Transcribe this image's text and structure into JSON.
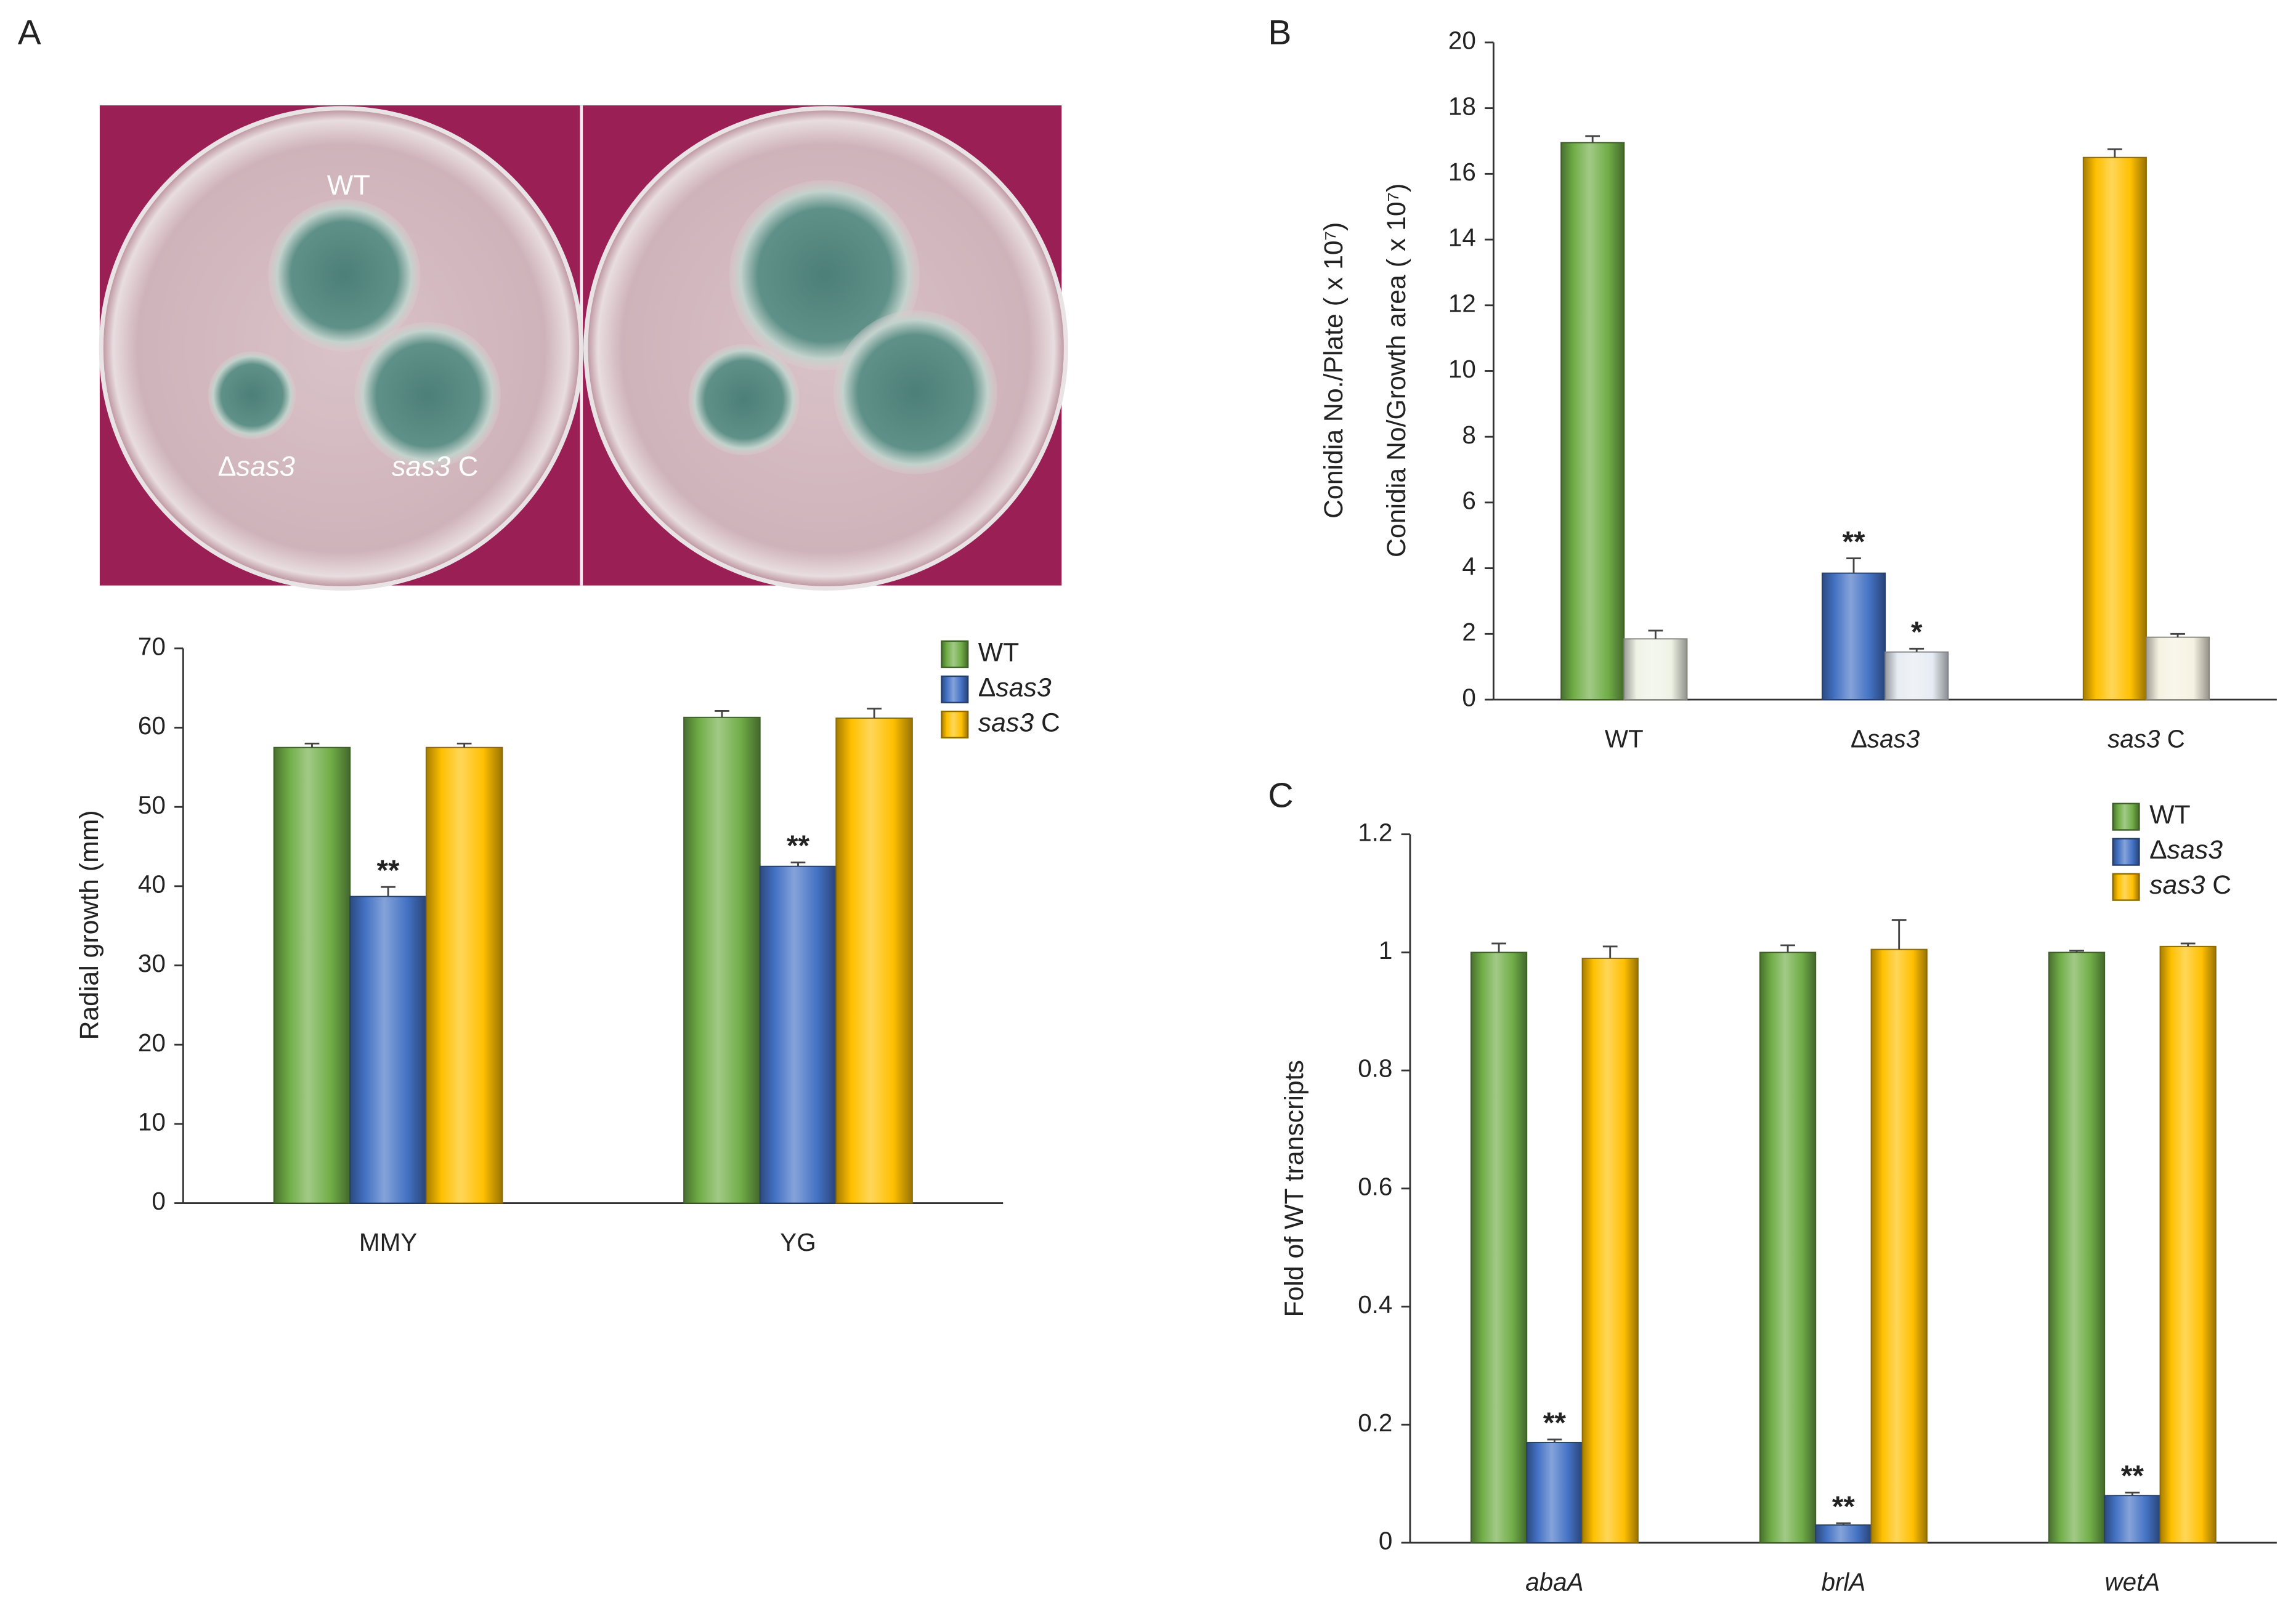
{
  "panels": [
    "A",
    "B",
    "C"
  ],
  "photo_labels": [
    "WT",
    "Δsas3",
    "sas3 C"
  ],
  "chart_data": [
    {
      "type": "bar",
      "y_label": "Radial growth (mm)",
      "categories": [
        "MMY",
        "YG"
      ],
      "series": [
        {
          "name": "WT",
          "color": "#70ad47",
          "values": [
            57.5,
            61.3
          ],
          "errors": [
            0.5,
            0.8
          ]
        },
        {
          "name": "Δsas3",
          "color": "#4472c4",
          "values": [
            38.7,
            42.5
          ],
          "errors": [
            1.2,
            0.5
          ],
          "significance": [
            "**",
            "**"
          ]
        },
        {
          "name": "sas3 C",
          "color": "#ffc000",
          "values": [
            57.5,
            61.2
          ],
          "errors": [
            0.5,
            1.2
          ]
        }
      ],
      "ylim": [
        0,
        70
      ],
      "yticks": [
        0,
        10,
        20,
        30,
        40,
        50,
        60,
        70
      ],
      "legend": "upper right"
    },
    {
      "type": "bar",
      "y_label": [
        "Conidia No./Plate ( x 10⁷)",
        "Conidia No/Growth area ( x 10⁷)"
      ],
      "categories": [
        "WT",
        "Δsas3",
        "sas3 C"
      ],
      "series": [
        {
          "colors": [
            "#70ad47",
            "#4472c4",
            "#ffc000"
          ],
          "values": [
            16.95,
            3.85,
            16.5
          ],
          "errors": [
            0.2,
            0.45,
            0.25
          ],
          "significance": [
            null,
            "**",
            null
          ]
        },
        {
          "colors": [
            "#eef3e6",
            "#e6ecf3",
            "#f6f2e2"
          ],
          "values": [
            1.85,
            1.45,
            1.9
          ],
          "errors": [
            0.25,
            0.1,
            0.1
          ],
          "significance": [
            null,
            "*",
            null
          ]
        }
      ],
      "ylim": [
        0,
        20
      ],
      "yticks": [
        0,
        2,
        4,
        6,
        8,
        10,
        12,
        14,
        16,
        18,
        20
      ]
    },
    {
      "type": "bar",
      "y_label": "Fold of WT transcripts",
      "categories": [
        "abaA",
        "brlA",
        "wetA"
      ],
      "category_style": "italic",
      "series": [
        {
          "name": "WT",
          "color": "#70ad47",
          "values": [
            1,
            1,
            1
          ],
          "errors": [
            0.015,
            0.012,
            0.003
          ]
        },
        {
          "name": "Δsas3",
          "color": "#4472c4",
          "values": [
            0.17,
            0.03,
            0.08
          ],
          "errors": [
            0.005,
            0.003,
            0.005
          ],
          "significance": [
            "**",
            "**",
            "**"
          ]
        },
        {
          "name": "sas3 C",
          "color": "#ffc000",
          "values": [
            0.99,
            1.005,
            1.01
          ],
          "errors": [
            0.02,
            0.05,
            0.005
          ]
        }
      ],
      "ylim": [
        0,
        1.2
      ],
      "yticks": [
        0,
        0.2,
        0.4,
        0.6,
        0.8,
        1,
        1.2
      ],
      "legend": "upper right"
    }
  ]
}
